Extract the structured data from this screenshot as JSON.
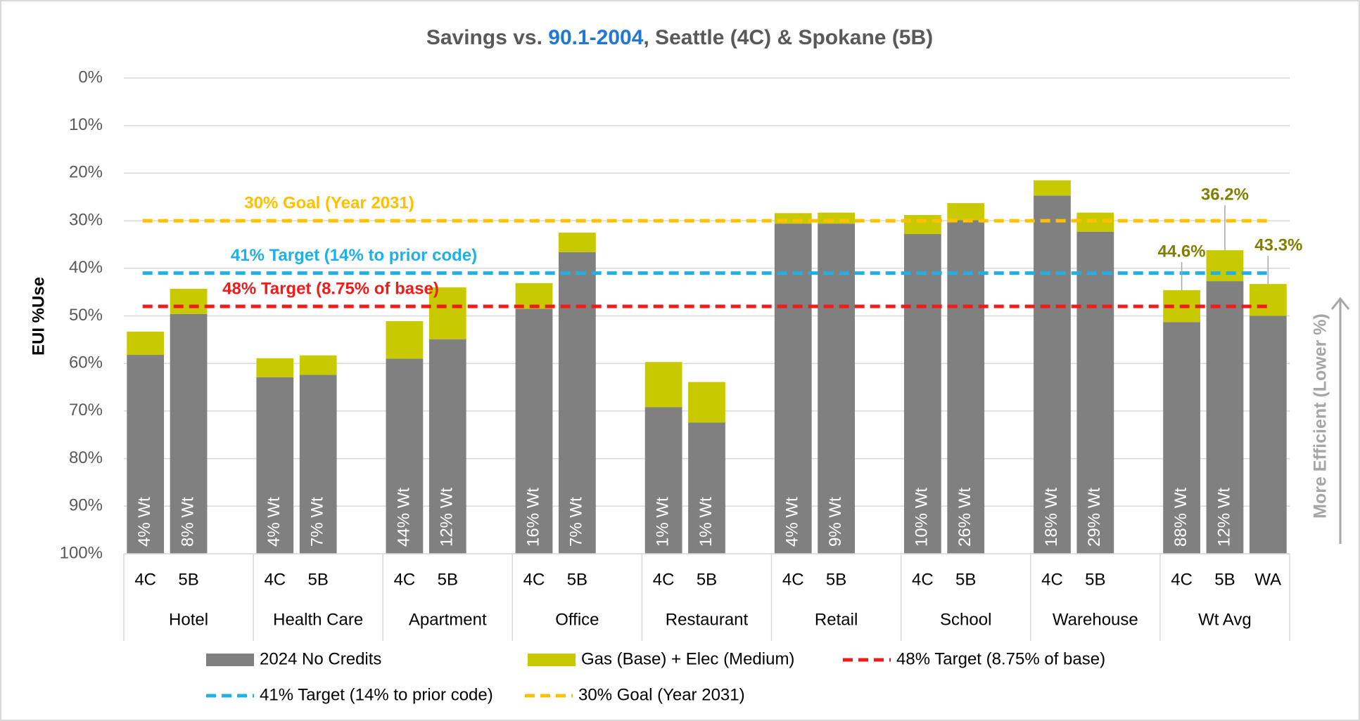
{
  "chart_data": {
    "type": "stacked_bar",
    "title": [
      "Savings vs. ",
      "90.1-2004",
      ", Seattle (4C) & Spokane (5B)"
    ],
    "title_colors": [
      "#595959",
      "#1f78d1",
      "#595959"
    ],
    "ylabel": "EUI %Use",
    "side_note": "More Efficient (Lower %)",
    "y_inverted": true,
    "ylim": [
      0,
      100
    ],
    "yticks": [
      {
        "value": 0,
        "label": "0%"
      },
      {
        "value": 10,
        "label": "10%"
      },
      {
        "value": 20,
        "label": "20%"
      },
      {
        "value": 30,
        "label": "30%"
      },
      {
        "value": 40,
        "label": "40%"
      },
      {
        "value": 50,
        "label": "50%"
      },
      {
        "value": 60,
        "label": "60%"
      },
      {
        "value": 70,
        "label": "70%"
      },
      {
        "value": 80,
        "label": "80%"
      },
      {
        "value": 90,
        "label": "90%"
      },
      {
        "value": 100,
        "label": "100%"
      }
    ],
    "grid": true,
    "groups": [
      {
        "name": "Hotel",
        "subcategories": [
          "4C",
          "5B"
        ]
      },
      {
        "name": "Health Care",
        "subcategories": [
          "4C",
          "5B"
        ]
      },
      {
        "name": "Apartment",
        "subcategories": [
          "4C",
          "5B"
        ]
      },
      {
        "name": "Office",
        "subcategories": [
          "4C",
          "5B"
        ]
      },
      {
        "name": "Restaurant",
        "subcategories": [
          "4C",
          "5B"
        ]
      },
      {
        "name": "Retail",
        "subcategories": [
          "4C",
          "5B"
        ]
      },
      {
        "name": "School",
        "subcategories": [
          "4C",
          "5B"
        ]
      },
      {
        "name": "Warehouse",
        "subcategories": [
          "4C",
          "5B"
        ]
      },
      {
        "name": "Wt Avg",
        "subcategories": [
          "4C",
          "5B",
          "WA"
        ]
      }
    ],
    "weights": [
      "4% Wt",
      "8% Wt",
      "4% Wt",
      "7% Wt",
      "44% Wt",
      "12% Wt",
      "16% Wt",
      "7% Wt",
      "1% Wt",
      "1% Wt",
      "4% Wt",
      "9% Wt",
      "10% Wt",
      "26% Wt",
      "18% Wt",
      "29% Wt",
      "88% Wt",
      "12% Wt"
    ],
    "series": [
      {
        "name": "2024 No Credits",
        "color": "#808080",
        "values": [
          58.2,
          49.6,
          62.9,
          62.4,
          59.0,
          54.9,
          48.5,
          36.6,
          69.2,
          72.4,
          30.6,
          30.6,
          32.8,
          29.9,
          24.7,
          32.3,
          51.3,
          42.7,
          50.0
        ]
      },
      {
        "name": "Gas (Base) + Elec (Medium)",
        "color": "#c9c900",
        "values": [
          4.9,
          5.3,
          4.0,
          4.1,
          7.9,
          10.9,
          5.4,
          4.1,
          9.5,
          8.5,
          2.2,
          2.3,
          4.0,
          3.6,
          3.2,
          4.0,
          6.7,
          6.5,
          6.7
        ]
      }
    ],
    "annotations": [
      {
        "value": 44.6,
        "label": "44.6%"
      },
      {
        "value": 36.2,
        "label": "36.2%"
      },
      {
        "value": 43.3,
        "label": "43.3%"
      }
    ],
    "annotation_color": "#7f7f00",
    "reference_lines": [
      {
        "name": "48% Target (8.75% of base)",
        "color": "#ee1c1c",
        "value": 48
      },
      {
        "name": "41% Target (14% to prior code)",
        "color": "#1fb0e6",
        "value": 41
      },
      {
        "name": "30% Goal (Year 2031)",
        "color": "#ffc000",
        "value": 30
      }
    ]
  }
}
